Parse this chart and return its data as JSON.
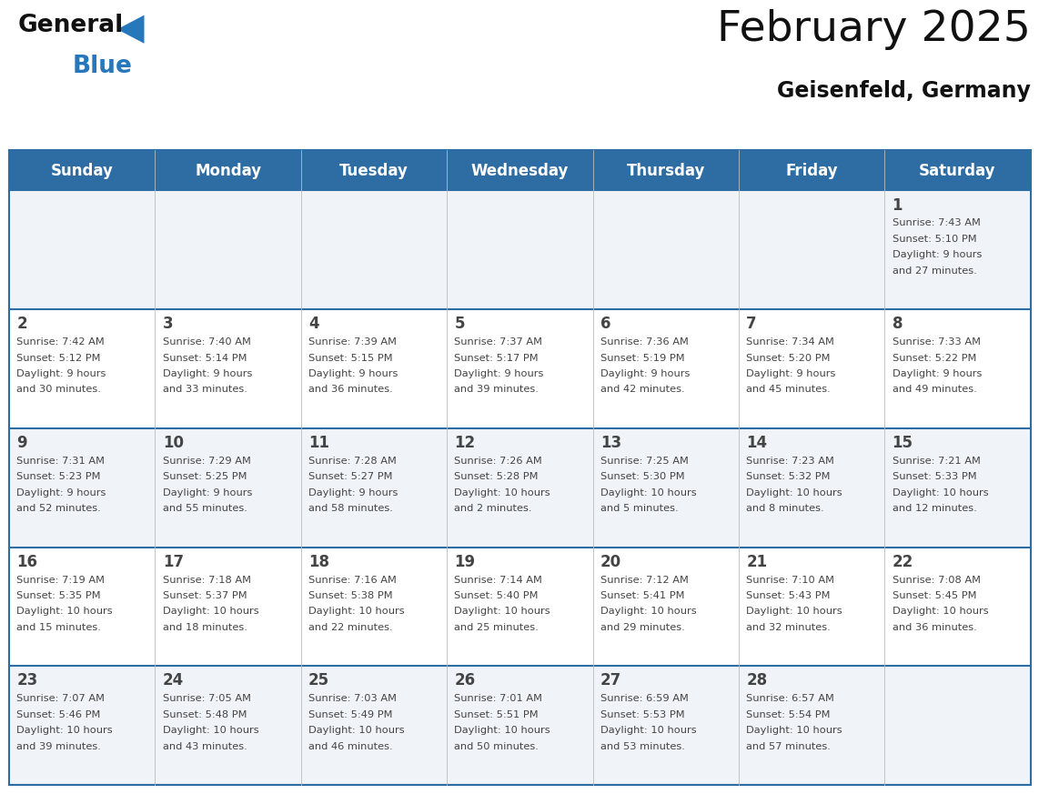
{
  "title": "February 2025",
  "subtitle": "Geisenfeld, Germany",
  "days_of_week": [
    "Sunday",
    "Monday",
    "Tuesday",
    "Wednesday",
    "Thursday",
    "Friday",
    "Saturday"
  ],
  "header_bg": "#2e6da4",
  "header_text": "#ffffff",
  "divider_color": "#2e6da4",
  "row_bg_odd": "#f0f4f8",
  "row_bg_even": "#ffffff",
  "text_color": "#444444",
  "title_color": "#111111",
  "calendar_data": [
    [
      {
        "day": null,
        "sunrise": null,
        "sunset": null,
        "daylight": null
      },
      {
        "day": null,
        "sunrise": null,
        "sunset": null,
        "daylight": null
      },
      {
        "day": null,
        "sunrise": null,
        "sunset": null,
        "daylight": null
      },
      {
        "day": null,
        "sunrise": null,
        "sunset": null,
        "daylight": null
      },
      {
        "day": null,
        "sunrise": null,
        "sunset": null,
        "daylight": null
      },
      {
        "day": null,
        "sunrise": null,
        "sunset": null,
        "daylight": null
      },
      {
        "day": 1,
        "sunrise": "7:43 AM",
        "sunset": "5:10 PM",
        "daylight": "9 hours and 27 minutes."
      }
    ],
    [
      {
        "day": 2,
        "sunrise": "7:42 AM",
        "sunset": "5:12 PM",
        "daylight": "9 hours and 30 minutes."
      },
      {
        "day": 3,
        "sunrise": "7:40 AM",
        "sunset": "5:14 PM",
        "daylight": "9 hours and 33 minutes."
      },
      {
        "day": 4,
        "sunrise": "7:39 AM",
        "sunset": "5:15 PM",
        "daylight": "9 hours and 36 minutes."
      },
      {
        "day": 5,
        "sunrise": "7:37 AM",
        "sunset": "5:17 PM",
        "daylight": "9 hours and 39 minutes."
      },
      {
        "day": 6,
        "sunrise": "7:36 AM",
        "sunset": "5:19 PM",
        "daylight": "9 hours and 42 minutes."
      },
      {
        "day": 7,
        "sunrise": "7:34 AM",
        "sunset": "5:20 PM",
        "daylight": "9 hours and 45 minutes."
      },
      {
        "day": 8,
        "sunrise": "7:33 AM",
        "sunset": "5:22 PM",
        "daylight": "9 hours and 49 minutes."
      }
    ],
    [
      {
        "day": 9,
        "sunrise": "7:31 AM",
        "sunset": "5:23 PM",
        "daylight": "9 hours and 52 minutes."
      },
      {
        "day": 10,
        "sunrise": "7:29 AM",
        "sunset": "5:25 PM",
        "daylight": "9 hours and 55 minutes."
      },
      {
        "day": 11,
        "sunrise": "7:28 AM",
        "sunset": "5:27 PM",
        "daylight": "9 hours and 58 minutes."
      },
      {
        "day": 12,
        "sunrise": "7:26 AM",
        "sunset": "5:28 PM",
        "daylight": "10 hours and 2 minutes."
      },
      {
        "day": 13,
        "sunrise": "7:25 AM",
        "sunset": "5:30 PM",
        "daylight": "10 hours and 5 minutes."
      },
      {
        "day": 14,
        "sunrise": "7:23 AM",
        "sunset": "5:32 PM",
        "daylight": "10 hours and 8 minutes."
      },
      {
        "day": 15,
        "sunrise": "7:21 AM",
        "sunset": "5:33 PM",
        "daylight": "10 hours and 12 minutes."
      }
    ],
    [
      {
        "day": 16,
        "sunrise": "7:19 AM",
        "sunset": "5:35 PM",
        "daylight": "10 hours and 15 minutes."
      },
      {
        "day": 17,
        "sunrise": "7:18 AM",
        "sunset": "5:37 PM",
        "daylight": "10 hours and 18 minutes."
      },
      {
        "day": 18,
        "sunrise": "7:16 AM",
        "sunset": "5:38 PM",
        "daylight": "10 hours and 22 minutes."
      },
      {
        "day": 19,
        "sunrise": "7:14 AM",
        "sunset": "5:40 PM",
        "daylight": "10 hours and 25 minutes."
      },
      {
        "day": 20,
        "sunrise": "7:12 AM",
        "sunset": "5:41 PM",
        "daylight": "10 hours and 29 minutes."
      },
      {
        "day": 21,
        "sunrise": "7:10 AM",
        "sunset": "5:43 PM",
        "daylight": "10 hours and 32 minutes."
      },
      {
        "day": 22,
        "sunrise": "7:08 AM",
        "sunset": "5:45 PM",
        "daylight": "10 hours and 36 minutes."
      }
    ],
    [
      {
        "day": 23,
        "sunrise": "7:07 AM",
        "sunset": "5:46 PM",
        "daylight": "10 hours and 39 minutes."
      },
      {
        "day": 24,
        "sunrise": "7:05 AM",
        "sunset": "5:48 PM",
        "daylight": "10 hours and 43 minutes."
      },
      {
        "day": 25,
        "sunrise": "7:03 AM",
        "sunset": "5:49 PM",
        "daylight": "10 hours and 46 minutes."
      },
      {
        "day": 26,
        "sunrise": "7:01 AM",
        "sunset": "5:51 PM",
        "daylight": "10 hours and 50 minutes."
      },
      {
        "day": 27,
        "sunrise": "6:59 AM",
        "sunset": "5:53 PM",
        "daylight": "10 hours and 53 minutes."
      },
      {
        "day": 28,
        "sunrise": "6:57 AM",
        "sunset": "5:54 PM",
        "daylight": "10 hours and 57 minutes."
      },
      {
        "day": null,
        "sunrise": null,
        "sunset": null,
        "daylight": null
      }
    ]
  ]
}
